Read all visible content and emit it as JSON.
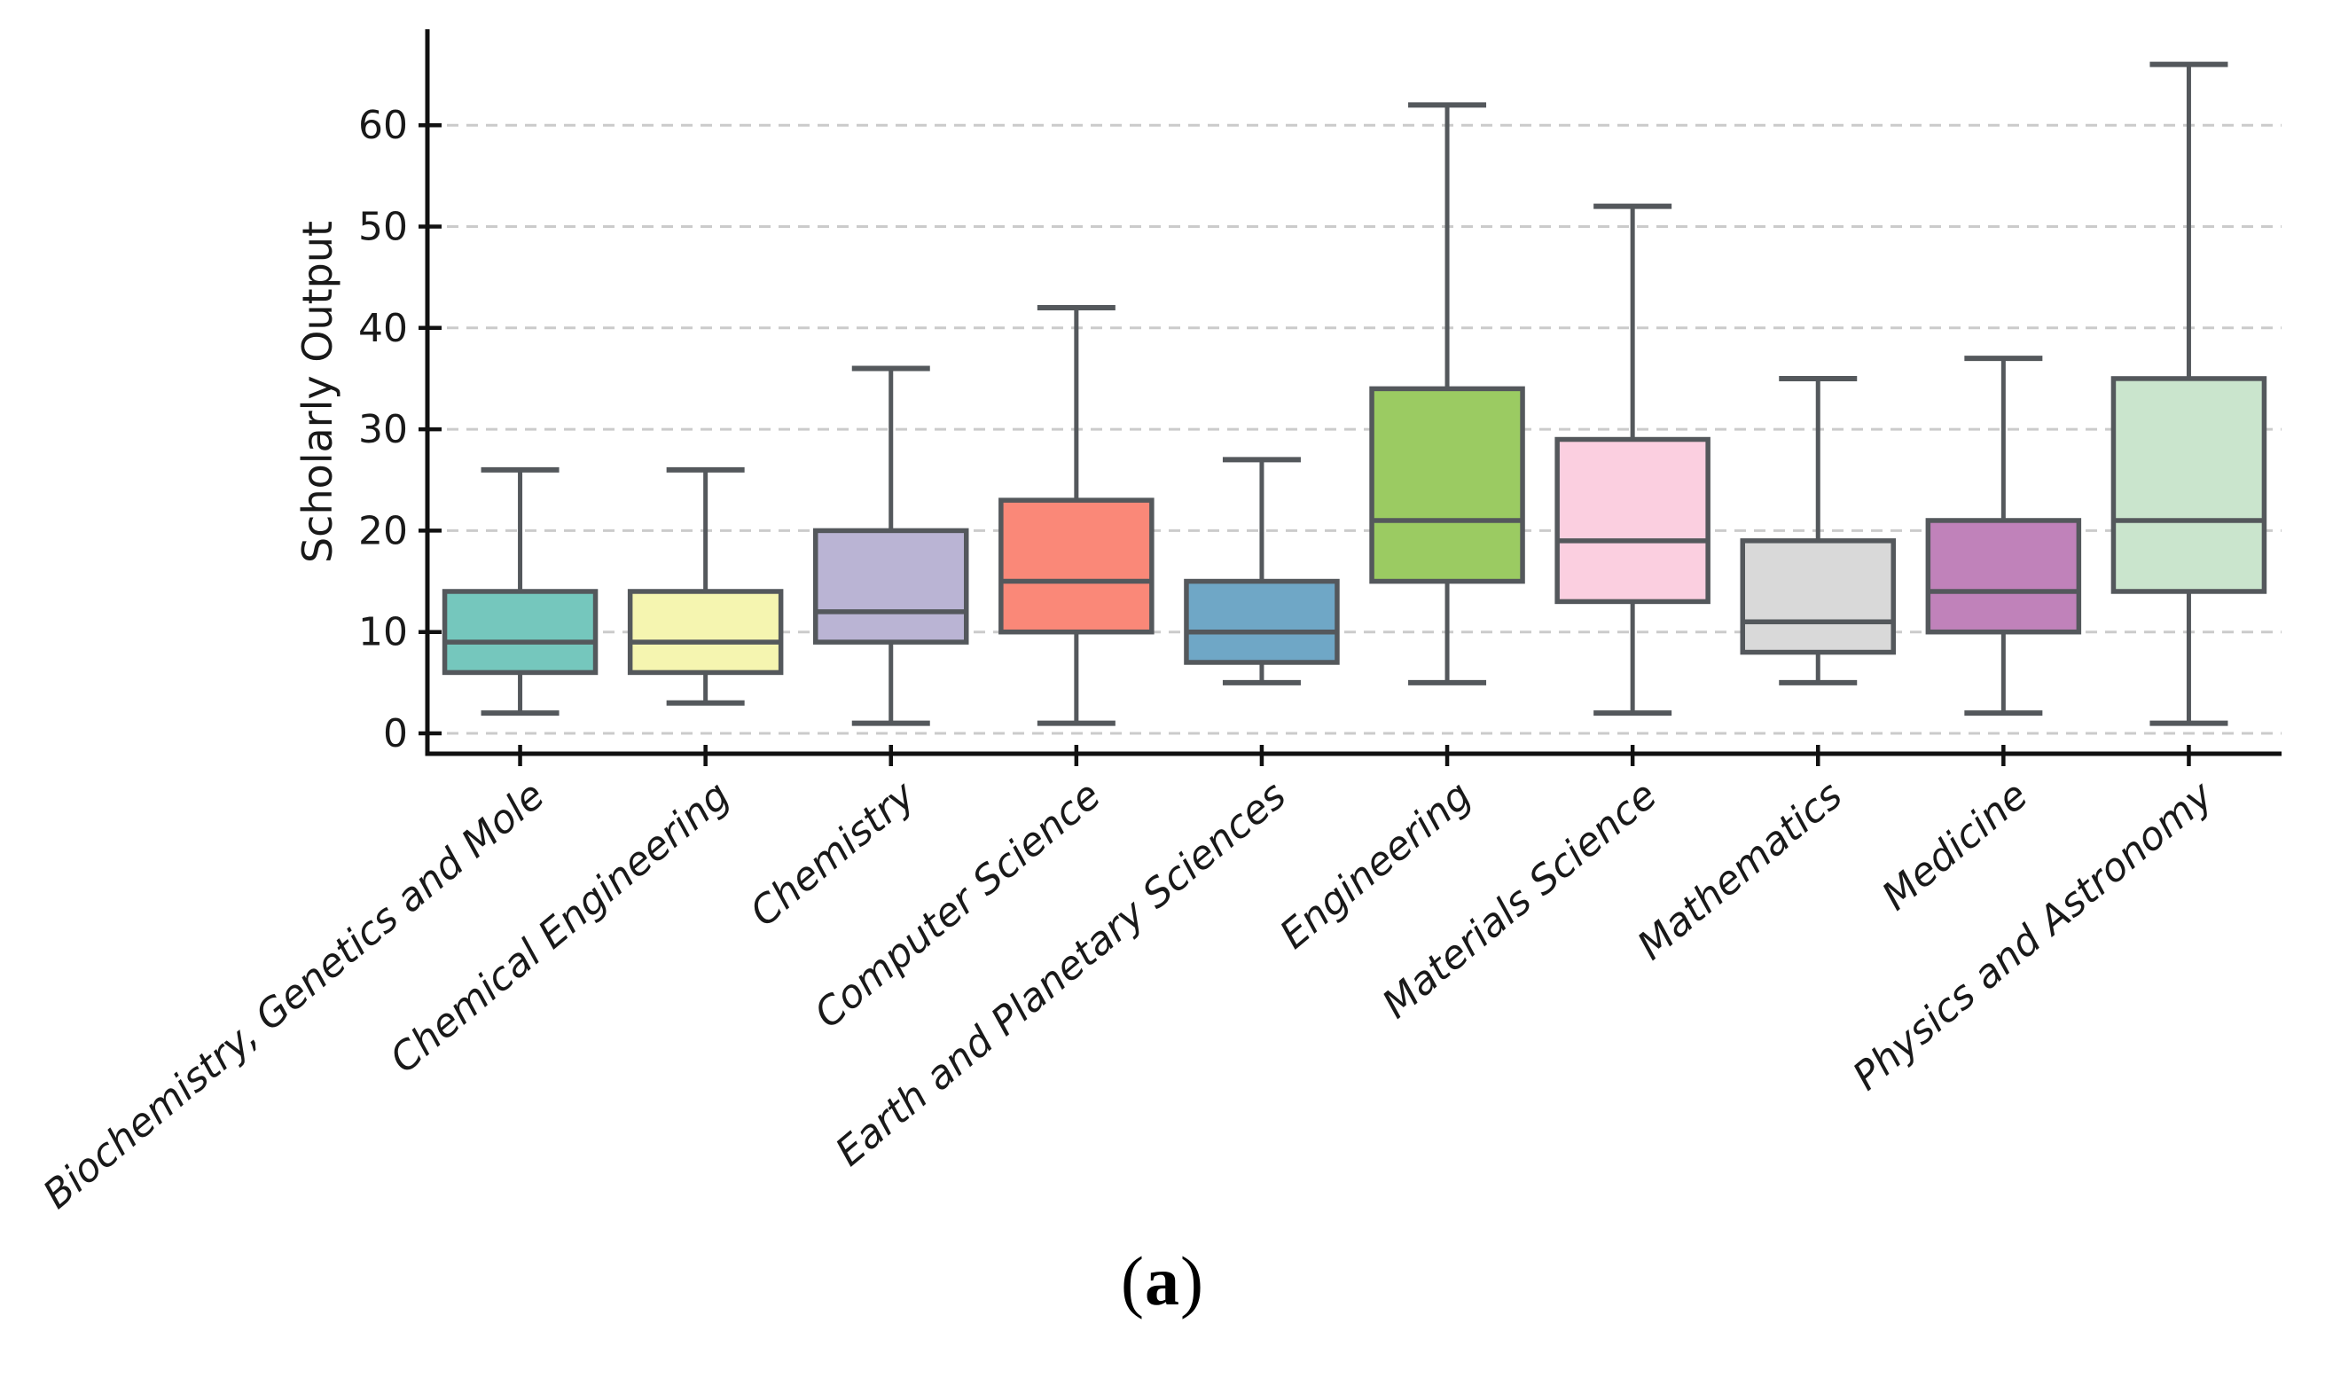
{
  "figure": {
    "background": "#ffffff",
    "caption": {
      "open": "(",
      "label": "a",
      "close": ")"
    }
  },
  "chart_data": {
    "type": "boxplot",
    "title": "",
    "xlabel": "",
    "ylabel": "Scholarly Output",
    "ylim": [
      0,
      69
    ],
    "yticks": [
      0,
      10,
      20,
      30,
      40,
      50,
      60
    ],
    "grid": "horizontal dashed gridlines at each y tick",
    "legend": "none",
    "categories": [
      "Biochemistry, Genetics and Mole",
      "Chemical Engineering",
      "Chemistry",
      "Computer Science",
      "Earth and Planetary Sciences",
      "Engineering",
      "Materials Science",
      "Mathematics",
      "Medicine",
      "Physics and Astronomy"
    ],
    "series": [
      {
        "name": "Biochemistry, Genetics and Mole",
        "min": 2,
        "q1": 6,
        "median": 9,
        "q3": 14,
        "max": 26,
        "color": "#75c7bd"
      },
      {
        "name": "Chemical Engineering",
        "min": 3,
        "q1": 6,
        "median": 9,
        "q3": 14,
        "max": 26,
        "color": "#f5f5b0"
      },
      {
        "name": "Chemistry",
        "min": 1,
        "q1": 9,
        "median": 12,
        "q3": 20,
        "max": 36,
        "color": "#bab4d4"
      },
      {
        "name": "Computer Science",
        "min": 1,
        "q1": 10,
        "median": 15,
        "q3": 23,
        "max": 42,
        "color": "#fa8878"
      },
      {
        "name": "Earth and Planetary Sciences",
        "min": 5,
        "q1": 7,
        "median": 10,
        "q3": 15,
        "max": 27,
        "color": "#6fa7c6"
      },
      {
        "name": "Engineering",
        "min": 5,
        "q1": 15,
        "median": 21,
        "q3": 34,
        "max": 62,
        "color": "#9bcb62"
      },
      {
        "name": "Materials Science",
        "min": 2,
        "q1": 13,
        "median": 19,
        "q3": 29,
        "max": 52,
        "color": "#fbcfe0"
      },
      {
        "name": "Mathematics",
        "min": 5,
        "q1": 8,
        "median": 11,
        "q3": 19,
        "max": 35,
        "color": "#d9d9d9"
      },
      {
        "name": "Medicine",
        "min": 2,
        "q1": 10,
        "median": 14,
        "q3": 21,
        "max": 37,
        "color": "#c082ba"
      },
      {
        "name": "Physics and Astronomy",
        "min": 1,
        "q1": 14,
        "median": 21,
        "q3": 35,
        "max": 66,
        "color": "#cae5cd"
      }
    ]
  },
  "style": {
    "box_border_color": "#54585c",
    "whisker_color": "#54585c",
    "median_color": "#54585c",
    "spine_color": "#111111",
    "grid_color": "#cbcbcb",
    "tick_label_color": "#191919",
    "axis_label_color": "#191919"
  }
}
